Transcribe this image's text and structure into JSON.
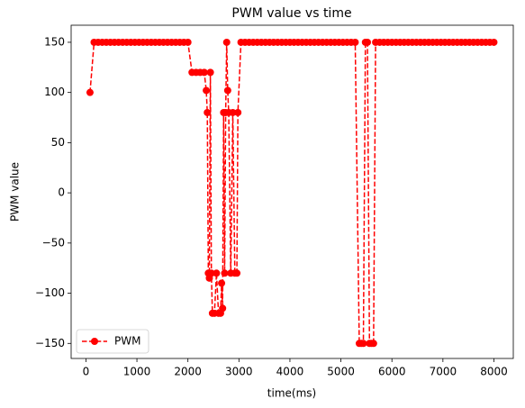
{
  "chart_data": {
    "type": "line",
    "title": "PWM value vs time",
    "xlabel": "time(ms)",
    "ylabel": "PWM value",
    "x": [
      80,
      160,
      240,
      320,
      400,
      480,
      560,
      640,
      720,
      800,
      880,
      960,
      1040,
      1120,
      1200,
      1280,
      1360,
      1440,
      1520,
      1600,
      1680,
      1760,
      1840,
      1920,
      2000,
      2080,
      2160,
      2240,
      2320,
      2360,
      2380,
      2400,
      2420,
      2440,
      2460,
      2480,
      2520,
      2560,
      2600,
      2640,
      2660,
      2680,
      2700,
      2720,
      2740,
      2760,
      2780,
      2800,
      2840,
      2880,
      2920,
      2960,
      2980,
      3040,
      3120,
      3200,
      3280,
      3360,
      3440,
      3520,
      3600,
      3680,
      3760,
      3840,
      3920,
      4000,
      4080,
      4160,
      4240,
      4320,
      4400,
      4480,
      4560,
      4640,
      4720,
      4800,
      4880,
      4960,
      5040,
      5120,
      5200,
      5280,
      5360,
      5400,
      5440,
      5480,
      5520,
      5560,
      5600,
      5640,
      5680,
      5760,
      5840,
      5920,
      6000,
      6080,
      6160,
      6240,
      6320,
      6400,
      6480,
      6560,
      6640,
      6720,
      6800,
      6880,
      6960,
      7040,
      7120,
      7200,
      7280,
      7360,
      7440,
      7520,
      7600,
      7680,
      7760,
      7840,
      7920,
      8000
    ],
    "series": [
      {
        "name": "PWM",
        "color": "#ff0000",
        "values": [
          100,
          150,
          150,
          150,
          150,
          150,
          150,
          150,
          150,
          150,
          150,
          150,
          150,
          150,
          150,
          150,
          150,
          150,
          150,
          150,
          150,
          150,
          150,
          150,
          150,
          120,
          120,
          120,
          120,
          102,
          80,
          -80,
          -85,
          120,
          -80,
          -120,
          -120,
          -80,
          -120,
          -120,
          -90,
          -115,
          80,
          -80,
          80,
          150,
          102,
          80,
          -80,
          80,
          -80,
          -80,
          80,
          150,
          150,
          150,
          150,
          150,
          150,
          150,
          150,
          150,
          150,
          150,
          150,
          150,
          150,
          150,
          150,
          150,
          150,
          150,
          150,
          150,
          150,
          150,
          150,
          150,
          150,
          150,
          150,
          150,
          -150,
          -150,
          -150,
          150,
          150,
          -150,
          -150,
          -150,
          150,
          150,
          150,
          150,
          150,
          150,
          150,
          150,
          150,
          150,
          150,
          150,
          150,
          150,
          150,
          150,
          150,
          150,
          150,
          150,
          150,
          150,
          150,
          150,
          150,
          150,
          150,
          150,
          150,
          150
        ]
      }
    ],
    "xlim": [
      -290,
      8380
    ],
    "ylim": [
      -165,
      167
    ],
    "xticks": [
      0,
      1000,
      2000,
      3000,
      4000,
      5000,
      6000,
      7000,
      8000
    ],
    "yticks": [
      {
        "value": -150,
        "label": "−150"
      },
      {
        "value": -100,
        "label": "−100"
      },
      {
        "value": -50,
        "label": "−50"
      },
      0,
      50,
      100,
      150
    ],
    "legend": "lower left",
    "grid": false
  }
}
